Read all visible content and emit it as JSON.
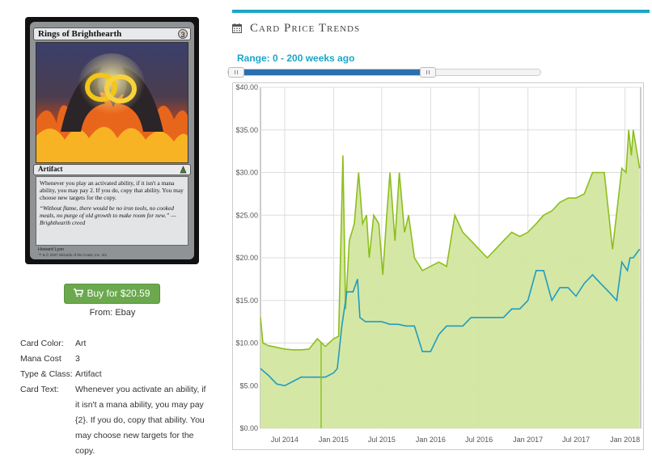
{
  "card": {
    "name": "Rings of Brighthearth",
    "cost": "3",
    "type_line": "Artifact",
    "rules_text": "Whenever you play an activated ability, if it isn't a mana ability, you may pay 2. If you do, copy that ability. You may choose new targets for the copy.",
    "flavor_text": "“Without flame, there would be no iron tools, no cooked meals, no purge of old growth to make room for new.” —Brighthearth creed",
    "artist": "Howard Lyon",
    "copyright": "™ & © 2007 Wizards of the Coast, Inc. 2/2"
  },
  "buy": {
    "label": "Buy for $20.59",
    "source": "From: Ebay"
  },
  "details": [
    {
      "label": "Card Color:",
      "value": "Art"
    },
    {
      "label": "Mana Cost",
      "value": "3"
    },
    {
      "label": "Type & Class:",
      "value": "Artifact"
    },
    {
      "label": "Card Text:",
      "value": "Whenever you activate an ability, if it isn't a mana ability, you may pay {2}. If you do, copy that ability. You may choose new targets for the copy."
    }
  ],
  "section_title": "Card Price Trends",
  "range_label": "Range: 0 - 200 weeks ago",
  "range": {
    "min": 0,
    "max": 200,
    "low_weeks": 0,
    "high_weeks": 200
  },
  "colors": {
    "accent": "#1aa6c8",
    "green": "#8cbe1e",
    "green_fill": "#d3e6a0",
    "blue": "#1e9cc0",
    "slider": "#2a6fb0",
    "button": "#6ba84e"
  },
  "chart_data": {
    "type": "line",
    "title": "",
    "xlabel": "",
    "ylabel": "",
    "ylim": [
      0,
      40
    ],
    "yticks": [
      "$0.00",
      "$5.00",
      "$10.00",
      "$15.00",
      "$20.00",
      "$25.00",
      "$30.00",
      "$35.00",
      "$40.00"
    ],
    "xticks": [
      "Jul 2014",
      "Jan 2015",
      "Jul 2015",
      "Jan 2016",
      "Jul 2016",
      "Jan 2017",
      "Jul 2017",
      "Jan 2018"
    ],
    "xlim": [
      "2014-04-01",
      "2018-03-01"
    ],
    "grid": true,
    "series": [
      {
        "fill": true,
        "points": [
          [
            "2014-04-01",
            13
          ],
          [
            "2014-04-10",
            10
          ],
          [
            "2014-05-01",
            9.7
          ],
          [
            "2014-06-01",
            9.5
          ],
          [
            "2014-07-01",
            9.3
          ],
          [
            "2014-08-01",
            9.2
          ],
          [
            "2014-09-01",
            9.2
          ],
          [
            "2014-10-01",
            9.3
          ],
          [
            "2014-11-01",
            10.5
          ],
          [
            "2014-12-01",
            9.6
          ],
          [
            "2015-01-01",
            10.5
          ],
          [
            "2015-01-20",
            10.8
          ],
          [
            "2015-02-05",
            32
          ],
          [
            "2015-02-15",
            14
          ],
          [
            "2015-03-01",
            22
          ],
          [
            "2015-03-20",
            24
          ],
          [
            "2015-04-05",
            30
          ],
          [
            "2015-04-20",
            24
          ],
          [
            "2015-05-05",
            25
          ],
          [
            "2015-05-15",
            20
          ],
          [
            "2015-06-01",
            25
          ],
          [
            "2015-06-20",
            24
          ],
          [
            "2015-07-05",
            18
          ],
          [
            "2015-07-20",
            25
          ],
          [
            "2015-08-01",
            30
          ],
          [
            "2015-08-20",
            22
          ],
          [
            "2015-09-05",
            30
          ],
          [
            "2015-09-25",
            23
          ],
          [
            "2015-10-10",
            25
          ],
          [
            "2015-11-01",
            20
          ],
          [
            "2015-12-01",
            18.5
          ],
          [
            "2016-01-01",
            19
          ],
          [
            "2016-02-01",
            19.5
          ],
          [
            "2016-03-01",
            19
          ],
          [
            "2016-04-01",
            25
          ],
          [
            "2016-05-01",
            23
          ],
          [
            "2016-06-01",
            22
          ],
          [
            "2016-07-01",
            21
          ],
          [
            "2016-08-01",
            20
          ],
          [
            "2016-09-01",
            21
          ],
          [
            "2016-10-01",
            22
          ],
          [
            "2016-11-01",
            23
          ],
          [
            "2016-12-01",
            22.5
          ],
          [
            "2017-01-01",
            23
          ],
          [
            "2017-02-01",
            24
          ],
          [
            "2017-03-01",
            25
          ],
          [
            "2017-04-01",
            25.5
          ],
          [
            "2017-05-01",
            26.5
          ],
          [
            "2017-06-01",
            27
          ],
          [
            "2017-07-01",
            27
          ],
          [
            "2017-08-01",
            27.5
          ],
          [
            "2017-09-01",
            30
          ],
          [
            "2017-10-15",
            30
          ],
          [
            "2017-11-15",
            21
          ],
          [
            "2017-12-20",
            30.5
          ],
          [
            "2018-01-05",
            30
          ],
          [
            "2018-01-15",
            35
          ],
          [
            "2018-01-25",
            32
          ],
          [
            "2018-02-01",
            35
          ],
          [
            "2018-02-25",
            30.5
          ]
        ]
      },
      {
        "fill": false,
        "points": [
          [
            "2014-04-01",
            7
          ],
          [
            "2014-05-01",
            6.2
          ],
          [
            "2014-06-01",
            5.2
          ],
          [
            "2014-07-01",
            5
          ],
          [
            "2014-08-01",
            5.5
          ],
          [
            "2014-09-01",
            6
          ],
          [
            "2014-10-01",
            6
          ],
          [
            "2014-11-01",
            6
          ],
          [
            "2014-12-01",
            6
          ],
          [
            "2015-01-01",
            6.5
          ],
          [
            "2015-01-15",
            7
          ],
          [
            "2015-02-01",
            12
          ],
          [
            "2015-02-20",
            16
          ],
          [
            "2015-03-15",
            16
          ],
          [
            "2015-04-01",
            17.5
          ],
          [
            "2015-04-10",
            13
          ],
          [
            "2015-05-01",
            12.5
          ],
          [
            "2015-06-01",
            12.5
          ],
          [
            "2015-07-01",
            12.5
          ],
          [
            "2015-08-01",
            12.2
          ],
          [
            "2015-09-01",
            12.2
          ],
          [
            "2015-10-01",
            12
          ],
          [
            "2015-11-01",
            12
          ],
          [
            "2015-12-01",
            9
          ],
          [
            "2016-01-01",
            9
          ],
          [
            "2016-02-01",
            11
          ],
          [
            "2016-03-01",
            12
          ],
          [
            "2016-04-01",
            12
          ],
          [
            "2016-05-01",
            12
          ],
          [
            "2016-06-01",
            13
          ],
          [
            "2016-07-01",
            13
          ],
          [
            "2016-08-01",
            13
          ],
          [
            "2016-09-01",
            13
          ],
          [
            "2016-10-01",
            13
          ],
          [
            "2016-11-01",
            14
          ],
          [
            "2016-12-01",
            14
          ],
          [
            "2017-01-01",
            15
          ],
          [
            "2017-02-01",
            18.5
          ],
          [
            "2017-03-01",
            18.5
          ],
          [
            "2017-04-01",
            15
          ],
          [
            "2017-05-01",
            16.5
          ],
          [
            "2017-06-01",
            16.5
          ],
          [
            "2017-07-01",
            15.5
          ],
          [
            "2017-08-01",
            17
          ],
          [
            "2017-09-01",
            18
          ],
          [
            "2017-10-01",
            17
          ],
          [
            "2017-11-01",
            16
          ],
          [
            "2017-12-01",
            15
          ],
          [
            "2017-12-20",
            19.5
          ],
          [
            "2018-01-10",
            18.5
          ],
          [
            "2018-01-20",
            20
          ],
          [
            "2018-02-01",
            20
          ],
          [
            "2018-02-25",
            21
          ]
        ]
      }
    ]
  }
}
